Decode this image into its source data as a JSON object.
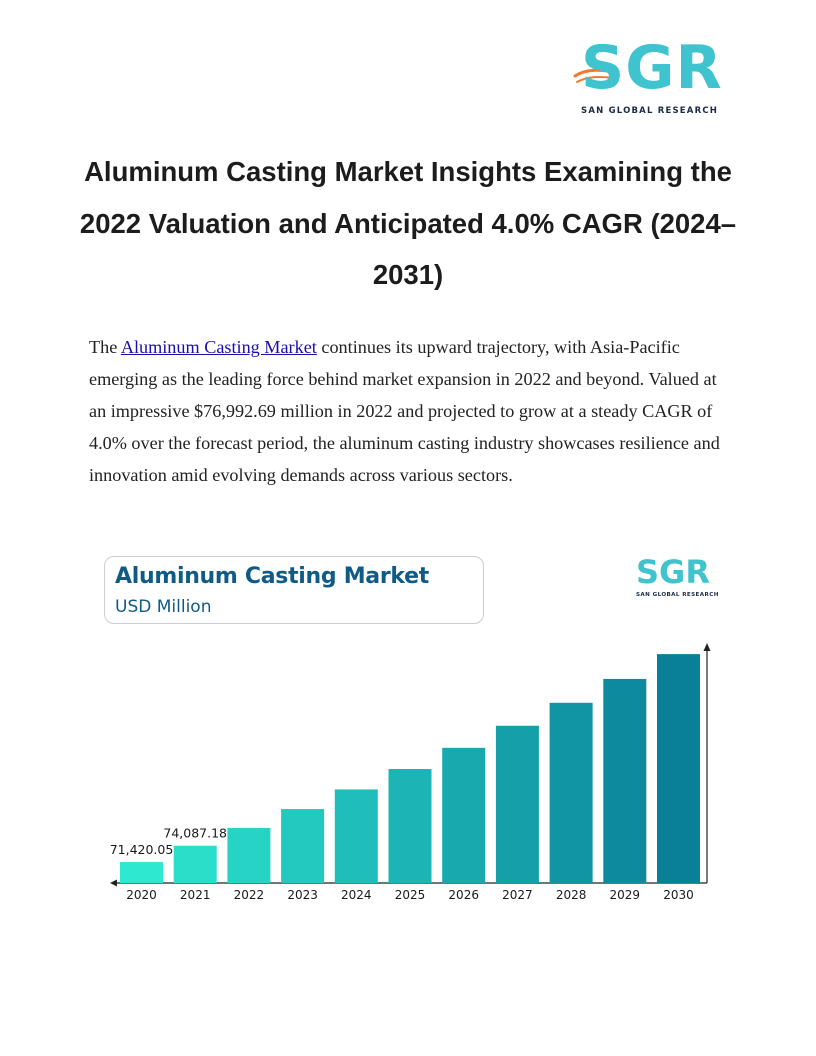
{
  "logo": {
    "mark": "SGR",
    "tagline": "SAN GLOBAL RESEARCH"
  },
  "heading": "Aluminum Casting Market Insights Examining the 2022 Valuation and Anticipated 4.0% CAGR (2024–2031)",
  "paragraph": {
    "prefix": "The ",
    "link_text": "Aluminum Casting Market",
    "suffix": " continues its upward trajectory, with Asia-Pacific emerging as the leading force behind market expansion in 2022 and beyond. Valued at an impressive $76,992.69 million in 2022 and projected to grow at a steady CAGR of 4.0% over the forecast period, the aluminum casting industry showcases resilience and innovation amid evolving demands across various sectors."
  },
  "chart_box": {
    "title": "Aluminum Casting Market",
    "subtitle": "USD Million"
  },
  "chart_logo": {
    "mark": "SGR",
    "tagline": "SAN GLOBAL RESEARCH"
  },
  "colors": {
    "brand_teal": "#3ec3cf",
    "brand_navy": "#1b2a44",
    "title_blue": "#0f5b86",
    "bar_start": "#2ee8d0",
    "bar_end": "#0a7f98"
  },
  "chart_data": {
    "type": "bar",
    "title": "Aluminum Casting Market",
    "ylabel": "USD Million",
    "categories": [
      "2020",
      "2021",
      "2022",
      "2023",
      "2024",
      "2025",
      "2026",
      "2027",
      "2028",
      "2029",
      "2030"
    ],
    "values": [
      71420.05,
      74087.18,
      76992.69,
      80072.4,
      83275.29,
      86606.3,
      90070.55,
      93673.37,
      97420.31,
      101317.12,
      105369.81
    ],
    "data_labels": [
      {
        "category": "2020",
        "text": "71,420.05"
      },
      {
        "category": "2021",
        "text": "74,087.18"
      }
    ],
    "ylim": [
      68000,
      108000
    ],
    "grid": false,
    "legend": "none"
  }
}
